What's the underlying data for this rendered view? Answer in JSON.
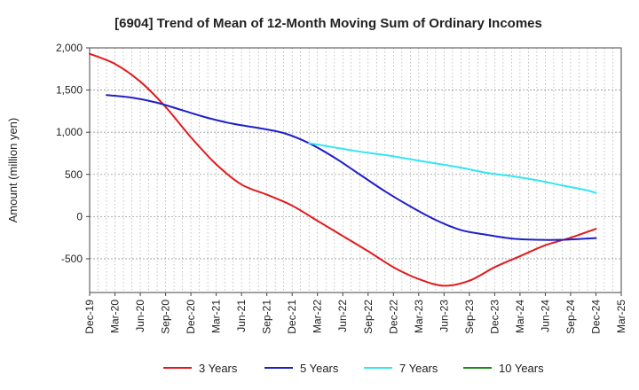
{
  "chart_data": {
    "type": "line",
    "title": "[6904]  Trend of Mean of 12-Month Moving Sum of Ordinary Incomes",
    "xlabel": "",
    "ylabel": "Amount (million yen)",
    "ylim": [
      -900,
      2000
    ],
    "yticks": [
      2000,
      1500,
      1000,
      500,
      0,
      -500
    ],
    "ytick_labels": [
      "2,000",
      "1,500",
      "1,000",
      "500",
      "0",
      "-500"
    ],
    "x_start": "Dec-19",
    "x_tick_labels": [
      "Dec-19",
      "Mar-20",
      "Jun-20",
      "Sep-20",
      "Dec-20",
      "Mar-21",
      "Jun-21",
      "Sep-21",
      "Dec-21",
      "Mar-22",
      "Jun-22",
      "Sep-22",
      "Dec-22",
      "Mar-23",
      "Jun-23",
      "Sep-23",
      "Dec-23",
      "Mar-24",
      "Jun-24",
      "Sep-24",
      "Dec-24",
      "Mar-25"
    ],
    "grid": true,
    "legend_position": "bottom",
    "series": [
      {
        "name": "3 Years",
        "color": "#e31a1c",
        "x": [
          0,
          3,
          6,
          9,
          12,
          15,
          18,
          21,
          24,
          27,
          30,
          33,
          36,
          39,
          42,
          45,
          48,
          51,
          54,
          57,
          60
        ],
        "values": [
          1930,
          1810,
          1600,
          1300,
          940,
          620,
          380,
          260,
          130,
          -50,
          -230,
          -410,
          -600,
          -740,
          -820,
          -760,
          -600,
          -470,
          -340,
          -250,
          -145
        ]
      },
      {
        "name": "5 Years",
        "color": "#1f1fc8",
        "x": [
          2,
          5,
          8,
          11,
          14,
          17,
          20,
          23,
          26,
          29,
          32,
          35,
          38,
          41,
          44,
          47,
          50,
          53,
          56,
          59,
          60
        ],
        "values": [
          1440,
          1410,
          1350,
          1260,
          1170,
          1100,
          1050,
          990,
          870,
          700,
          500,
          300,
          120,
          -40,
          -160,
          -215,
          -260,
          -275,
          -275,
          -260,
          -255
        ]
      },
      {
        "name": "7 Years",
        "color": "#33e6f0",
        "x": [
          26,
          29,
          32,
          35,
          38,
          41,
          44,
          47,
          50,
          53,
          56,
          59,
          60
        ],
        "values": [
          870,
          820,
          770,
          730,
          680,
          630,
          580,
          520,
          480,
          430,
          370,
          310,
          280
        ]
      },
      {
        "name": "10 Years",
        "color": "#1a8a1a",
        "x": [],
        "values": []
      }
    ]
  }
}
